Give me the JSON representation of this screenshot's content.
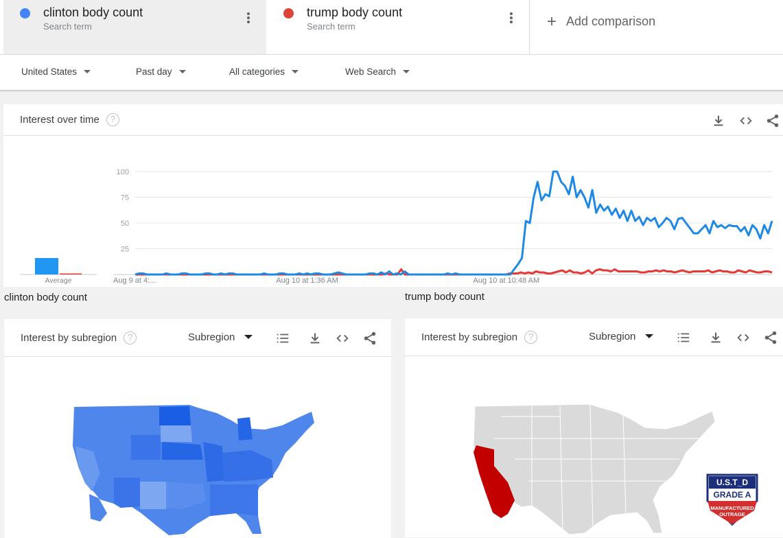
{
  "terms": [
    {
      "name": "clinton body count",
      "sub": "Search term",
      "color": "#4285f4"
    },
    {
      "name": "trump body count",
      "sub": "Search term",
      "color": "#db4437"
    }
  ],
  "add_comparison": "Add comparison",
  "filters": [
    {
      "label": "United States"
    },
    {
      "label": "Past day"
    },
    {
      "label": "All categories"
    },
    {
      "label": "Web Search"
    }
  ],
  "interest_over_time": {
    "title": "Interest over time",
    "average_label": "Average"
  },
  "chart_data": {
    "type": "line",
    "title": "Interest over time",
    "ylim": [
      0,
      100
    ],
    "yticks": [
      "100",
      "75",
      "50",
      "25"
    ],
    "xticks": [
      "Aug 9 at 4:...",
      "Aug 10 at 1:36 AM",
      "Aug 10 at 10:48 AM"
    ],
    "average": {
      "clinton body count": 16,
      "trump body count": 1
    },
    "series": [
      {
        "name": "clinton body count",
        "color": "#1e88e5",
        "values": [
          0,
          1,
          1,
          0,
          0,
          0,
          0,
          0,
          1,
          0,
          0,
          0,
          1,
          1,
          0,
          0,
          0,
          0,
          1,
          1,
          0,
          0,
          1,
          0,
          1,
          1,
          0,
          0,
          0,
          0,
          0,
          0,
          0,
          1,
          0,
          0,
          0,
          1,
          1,
          0,
          0,
          0,
          1,
          0,
          1,
          0,
          1,
          1,
          0,
          0,
          0,
          1,
          2,
          1,
          0,
          0,
          0,
          0,
          0,
          0,
          1,
          1,
          0,
          2,
          0,
          3,
          0,
          1,
          0,
          3,
          0,
          0,
          0,
          0,
          0,
          0,
          0,
          0,
          0,
          0,
          1,
          0,
          1,
          0,
          0,
          0,
          0,
          0,
          0,
          0,
          0,
          0,
          0,
          0,
          0,
          0,
          0,
          5,
          10,
          16,
          52,
          50,
          75,
          90,
          72,
          78,
          76,
          100,
          100,
          90,
          86,
          78,
          95,
          75,
          82,
          75,
          65,
          82,
          60,
          68,
          62,
          66,
          58,
          64,
          55,
          62,
          52,
          62,
          52,
          56,
          48,
          55,
          52,
          55,
          46,
          50,
          55,
          52,
          44,
          54,
          55,
          50,
          45,
          40,
          40,
          44,
          48,
          40,
          52,
          46,
          48,
          45,
          48,
          47,
          47,
          42,
          46,
          38,
          48,
          44,
          35,
          48,
          40,
          52
        ],
        "ticks_index": [
          0,
          44,
          95
        ]
      },
      {
        "name": "trump body count",
        "color": "#e53935",
        "values": [
          0,
          0,
          0,
          0,
          0,
          0,
          0,
          0,
          0,
          0,
          0,
          0,
          0,
          0,
          0,
          0,
          0,
          0,
          0,
          0,
          0,
          0,
          0,
          0,
          0,
          0,
          0,
          0,
          0,
          0,
          0,
          0,
          0,
          0,
          0,
          0,
          0,
          0,
          0,
          0,
          0,
          0,
          0,
          0,
          0,
          0,
          0,
          0,
          0,
          0,
          0,
          0,
          0,
          0,
          0,
          0,
          0,
          0,
          0,
          0,
          0,
          0,
          0,
          0,
          0,
          0,
          0,
          1,
          0,
          0,
          0,
          5,
          0,
          0,
          0,
          0,
          0,
          0,
          0,
          0,
          0,
          0,
          0,
          0,
          0,
          0,
          0,
          0,
          0,
          0,
          0,
          0,
          0,
          0,
          0,
          0,
          0,
          0,
          0,
          0,
          1,
          1,
          1,
          2,
          1,
          2,
          1,
          3,
          2,
          2,
          1,
          1,
          2,
          3,
          4,
          2,
          4,
          2,
          2,
          1,
          2,
          4,
          1,
          4,
          5,
          4,
          4,
          3,
          5,
          3,
          3,
          3,
          3,
          3,
          3,
          2,
          2,
          3,
          3,
          4,
          3,
          4,
          3,
          3,
          2,
          3,
          4,
          3,
          2,
          3,
          3,
          3,
          3,
          4,
          2,
          3,
          4,
          3,
          3,
          2,
          2,
          4,
          3,
          2,
          4,
          3,
          2,
          2,
          3,
          3,
          2
        ]
      }
    ]
  },
  "regions": [
    {
      "label": "clinton body count",
      "title": "Interest by subregion",
      "select": "Subregion",
      "map_color": "#4285f4"
    },
    {
      "label": "trump body count",
      "title": "Interest by subregion",
      "select": "Subregion",
      "map_color": "#c30000"
    }
  ],
  "badge": {
    "line1": "U.S.T_D",
    "line2": "GRADE A",
    "line3": "MANUFACTURED",
    "line4": "OUTRAGE"
  }
}
